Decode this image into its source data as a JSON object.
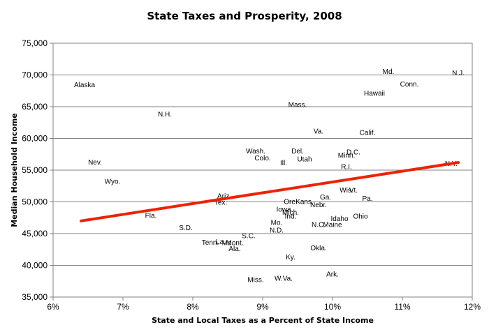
{
  "chart_data": {
    "type": "scatter",
    "title": "State Taxes and Prosperity, 2008",
    "xlabel": "State and Local Taxes as a Percent of State Income",
    "ylabel": "Median Household Income",
    "xlim": [
      6,
      12
    ],
    "ylim": [
      35000,
      75000
    ],
    "x_ticks": [
      "6%",
      "7%",
      "8%",
      "9%",
      "10%",
      "11%",
      "12%"
    ],
    "y_ticks": [
      "35,000",
      "40,000",
      "45,000",
      "50,000",
      "55,000",
      "60,000",
      "65,000",
      "70,000",
      "75,000"
    ],
    "grid": "horizontal",
    "trendline": {
      "color": "#ee2200",
      "x": [
        6.4,
        11.8
      ],
      "y": [
        47000,
        56200
      ]
    },
    "points": [
      {
        "label": "Alaska",
        "x": 6.45,
        "y": 68500
      },
      {
        "label": "N.H.",
        "x": 7.6,
        "y": 63900
      },
      {
        "label": "Nev.",
        "x": 6.6,
        "y": 56300
      },
      {
        "label": "Wyo.",
        "x": 6.85,
        "y": 53300
      },
      {
        "label": "Fla.",
        "x": 7.4,
        "y": 47900
      },
      {
        "label": "S.D.",
        "x": 7.9,
        "y": 46000
      },
      {
        "label": "Ariz.",
        "x": 8.45,
        "y": 51000
      },
      {
        "label": "Tex.",
        "x": 8.4,
        "y": 50000
      },
      {
        "label": "Tenn.",
        "x": 8.25,
        "y": 43700
      },
      {
        "label": "La.",
        "x": 8.4,
        "y": 43800
      },
      {
        "label": "Mo.",
        "x": 8.5,
        "y": 43600
      },
      {
        "label": "Mont.",
        "x": 8.6,
        "y": 43600
      },
      {
        "label": "Ala.",
        "x": 8.6,
        "y": 42700
      },
      {
        "label": "S.C.",
        "x": 8.8,
        "y": 44700
      },
      {
        "label": "Miss.",
        "x": 8.9,
        "y": 37800
      },
      {
        "label": "Wash.",
        "x": 8.9,
        "y": 58100
      },
      {
        "label": "Colo.",
        "x": 9.0,
        "y": 57000
      },
      {
        "label": "Ill.",
        "x": 9.3,
        "y": 56200
      },
      {
        "label": "Mass.",
        "x": 9.5,
        "y": 65400
      },
      {
        "label": "Del.",
        "x": 9.5,
        "y": 58100
      },
      {
        "label": "Utah",
        "x": 9.6,
        "y": 56800
      },
      {
        "label": "Va.",
        "x": 9.8,
        "y": 61200
      },
      {
        "label": "Calif.",
        "x": 10.5,
        "y": 61000
      },
      {
        "label": "Minn.",
        "x": 10.2,
        "y": 57400
      },
      {
        "label": "D.C.",
        "x": 10.3,
        "y": 57900
      },
      {
        "label": "R.I.",
        "x": 10.2,
        "y": 55600
      },
      {
        "label": "Md.",
        "x": 10.8,
        "y": 70600
      },
      {
        "label": "N.J.",
        "x": 11.8,
        "y": 70400
      },
      {
        "label": "Conn.",
        "x": 11.1,
        "y": 68600
      },
      {
        "label": "Hawaii",
        "x": 10.6,
        "y": 67200
      },
      {
        "label": "N.Y.",
        "x": 11.7,
        "y": 56100
      },
      {
        "label": "Wis.",
        "x": 10.2,
        "y": 51900
      },
      {
        "label": "Vt.",
        "x": 10.3,
        "y": 51900
      },
      {
        "label": "Pa.",
        "x": 10.5,
        "y": 50600
      },
      {
        "label": "Ga.",
        "x": 9.9,
        "y": 50800
      },
      {
        "label": "Ore.",
        "x": 9.4,
        "y": 50100
      },
      {
        "label": "Kans.",
        "x": 9.6,
        "y": 50100
      },
      {
        "label": "Nebr.",
        "x": 9.8,
        "y": 49600
      },
      {
        "label": "Iowa",
        "x": 9.3,
        "y": 48900
      },
      {
        "label": "Mich.",
        "x": 9.4,
        "y": 48400
      },
      {
        "label": "Ind.",
        "x": 9.4,
        "y": 47800
      },
      {
        "label": "Mo.",
        "x": 9.2,
        "y": 46800
      },
      {
        "label": "N.D.",
        "x": 9.2,
        "y": 45600
      },
      {
        "label": "Idaho",
        "x": 10.1,
        "y": 47400
      },
      {
        "label": "Ohio",
        "x": 10.4,
        "y": 47800
      },
      {
        "label": "N.C.",
        "x": 9.8,
        "y": 46500
      },
      {
        "label": "Maine",
        "x": 10.0,
        "y": 46500
      },
      {
        "label": "Okla.",
        "x": 9.8,
        "y": 42800
      },
      {
        "label": "Ky.",
        "x": 9.4,
        "y": 41400
      },
      {
        "label": "Ark.",
        "x": 10.0,
        "y": 38700
      },
      {
        "label": "W.Va.",
        "x": 9.3,
        "y": 38000
      }
    ]
  }
}
